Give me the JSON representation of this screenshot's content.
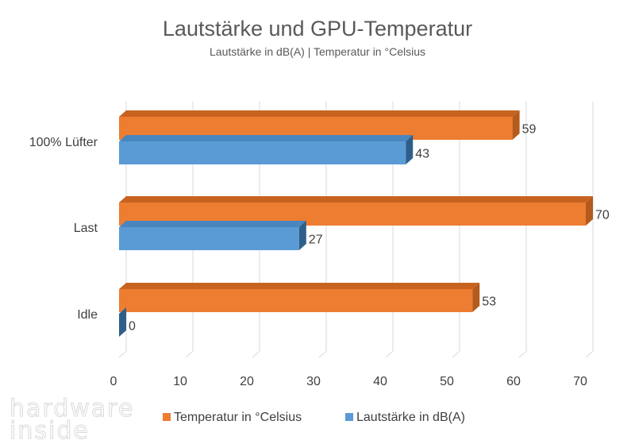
{
  "chart_data": {
    "type": "bar",
    "orientation": "horizontal",
    "title": "Lautstärke und GPU-Temperatur",
    "subtitle": "Lautstärke in dB(A) | Temperatur in °Celsius",
    "categories": [
      "100% Lüfter",
      "Last",
      "Idle"
    ],
    "series": [
      {
        "name": "Temperatur in °Celsius",
        "values": [
          59,
          70,
          53
        ],
        "color": "#ED7D31",
        "side_color": "#B45A1C",
        "top_color": "#C8631F"
      },
      {
        "name": "Lautstärke in dB(A)",
        "values": [
          43,
          27,
          0
        ],
        "color": "#5B9BD5",
        "side_color": "#2E5F8A",
        "top_color": "#4A86BE"
      }
    ],
    "xlim": [
      0,
      70
    ],
    "xticks": [
      0,
      10,
      20,
      30,
      40,
      50,
      60,
      70
    ],
    "grid": true,
    "legend": "bottom",
    "data_labels": true
  },
  "watermark": {
    "line1": "hardware",
    "line2": "inside"
  }
}
